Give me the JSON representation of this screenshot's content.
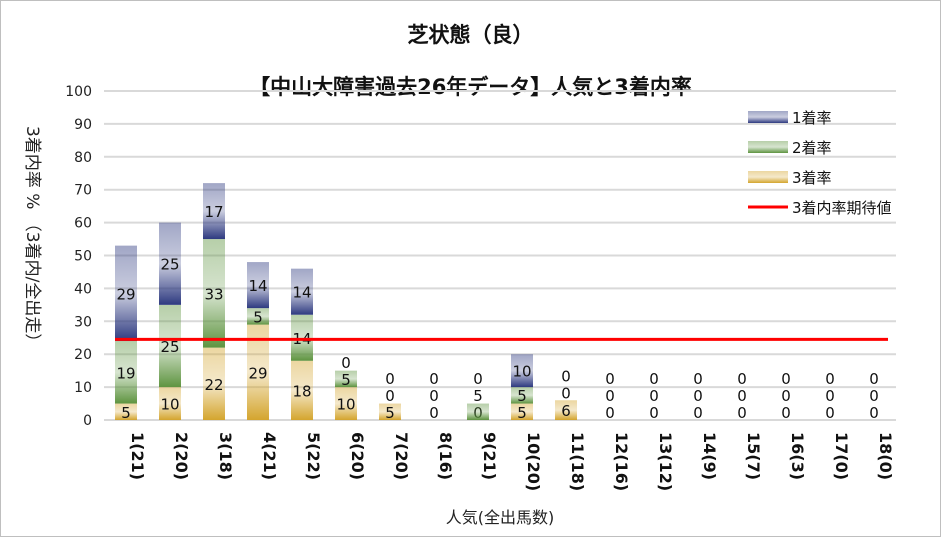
{
  "chart_data": {
    "type": "bar",
    "stacked": true,
    "title": "芝状態（良）",
    "subtitle": "【中山大障害過去26年データ】人気と3着内率",
    "xlabel": "人気(全出馬数)",
    "ylabel": "3着内率 % （3着内/全出走）",
    "ylim": [
      0,
      100
    ],
    "yticks": [
      0,
      10,
      20,
      30,
      40,
      50,
      60,
      70,
      80,
      90,
      100
    ],
    "categories": [
      "1(21)",
      "2(20)",
      "3(18)",
      "4(21)",
      "5(22)",
      "6(20)",
      "7(20)",
      "8(16)",
      "9(21)",
      "10(20)",
      "11(18)",
      "12(16)",
      "13(12)",
      "14(9)",
      "15(7)",
      "16(3)",
      "17(0)",
      "18(0)"
    ],
    "series": [
      {
        "name": "3着率",
        "color": "#d4a52e",
        "values": [
          5,
          10,
          22,
          29,
          18,
          10,
          5,
          0,
          0,
          5,
          6,
          0,
          0,
          0,
          0,
          0,
          0,
          0
        ]
      },
      {
        "name": "2着率",
        "color": "#5e9440",
        "values": [
          19,
          25,
          33,
          5,
          14,
          5,
          0,
          0,
          5,
          5,
          0,
          0,
          0,
          0,
          0,
          0,
          0,
          0
        ]
      },
      {
        "name": "1着率",
        "color": "#2e3a80",
        "values": [
          29,
          25,
          17,
          14,
          14,
          0,
          0,
          0,
          0,
          10,
          0,
          0,
          0,
          0,
          0,
          0,
          0,
          0
        ]
      }
    ],
    "expected_line": {
      "name": "3着内率期待値",
      "value": 24.5,
      "color": "#ff0000"
    },
    "legend_placement": "top-right",
    "grid": true
  }
}
